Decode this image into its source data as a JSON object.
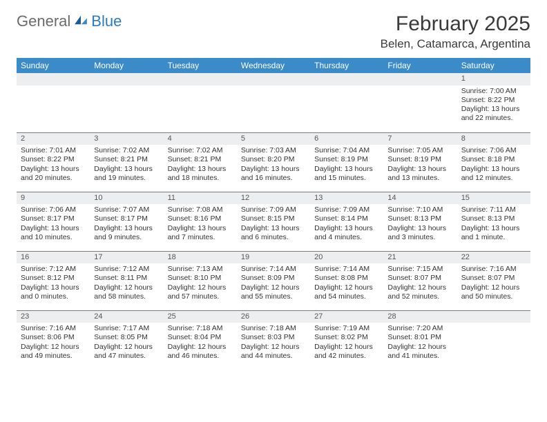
{
  "logo": {
    "general": "General",
    "blue": "Blue"
  },
  "title": "February 2025",
  "location": "Belen, Catamarca, Argentina",
  "day_headers": [
    "Sunday",
    "Monday",
    "Tuesday",
    "Wednesday",
    "Thursday",
    "Friday",
    "Saturday"
  ],
  "colors": {
    "header_bg": "#3b8bc9",
    "header_text": "#ffffff",
    "daynum_bg": "#eceef0",
    "border": "#7a7a7a",
    "text": "#333333",
    "logo_gray": "#6b6b6b",
    "logo_blue": "#2b7bbf"
  },
  "fonts": {
    "title_size": 30,
    "location_size": 17,
    "header_size": 12,
    "cell_size": 10.5
  },
  "weeks": [
    [
      null,
      null,
      null,
      null,
      null,
      null,
      {
        "n": "1",
        "sunrise": "Sunrise: 7:00 AM",
        "sunset": "Sunset: 8:22 PM",
        "daylight": "Daylight: 13 hours and 22 minutes."
      }
    ],
    [
      {
        "n": "2",
        "sunrise": "Sunrise: 7:01 AM",
        "sunset": "Sunset: 8:22 PM",
        "daylight": "Daylight: 13 hours and 20 minutes."
      },
      {
        "n": "3",
        "sunrise": "Sunrise: 7:02 AM",
        "sunset": "Sunset: 8:21 PM",
        "daylight": "Daylight: 13 hours and 19 minutes."
      },
      {
        "n": "4",
        "sunrise": "Sunrise: 7:02 AM",
        "sunset": "Sunset: 8:21 PM",
        "daylight": "Daylight: 13 hours and 18 minutes."
      },
      {
        "n": "5",
        "sunrise": "Sunrise: 7:03 AM",
        "sunset": "Sunset: 8:20 PM",
        "daylight": "Daylight: 13 hours and 16 minutes."
      },
      {
        "n": "6",
        "sunrise": "Sunrise: 7:04 AM",
        "sunset": "Sunset: 8:19 PM",
        "daylight": "Daylight: 13 hours and 15 minutes."
      },
      {
        "n": "7",
        "sunrise": "Sunrise: 7:05 AM",
        "sunset": "Sunset: 8:19 PM",
        "daylight": "Daylight: 13 hours and 13 minutes."
      },
      {
        "n": "8",
        "sunrise": "Sunrise: 7:06 AM",
        "sunset": "Sunset: 8:18 PM",
        "daylight": "Daylight: 13 hours and 12 minutes."
      }
    ],
    [
      {
        "n": "9",
        "sunrise": "Sunrise: 7:06 AM",
        "sunset": "Sunset: 8:17 PM",
        "daylight": "Daylight: 13 hours and 10 minutes."
      },
      {
        "n": "10",
        "sunrise": "Sunrise: 7:07 AM",
        "sunset": "Sunset: 8:17 PM",
        "daylight": "Daylight: 13 hours and 9 minutes."
      },
      {
        "n": "11",
        "sunrise": "Sunrise: 7:08 AM",
        "sunset": "Sunset: 8:16 PM",
        "daylight": "Daylight: 13 hours and 7 minutes."
      },
      {
        "n": "12",
        "sunrise": "Sunrise: 7:09 AM",
        "sunset": "Sunset: 8:15 PM",
        "daylight": "Daylight: 13 hours and 6 minutes."
      },
      {
        "n": "13",
        "sunrise": "Sunrise: 7:09 AM",
        "sunset": "Sunset: 8:14 PM",
        "daylight": "Daylight: 13 hours and 4 minutes."
      },
      {
        "n": "14",
        "sunrise": "Sunrise: 7:10 AM",
        "sunset": "Sunset: 8:13 PM",
        "daylight": "Daylight: 13 hours and 3 minutes."
      },
      {
        "n": "15",
        "sunrise": "Sunrise: 7:11 AM",
        "sunset": "Sunset: 8:13 PM",
        "daylight": "Daylight: 13 hours and 1 minute."
      }
    ],
    [
      {
        "n": "16",
        "sunrise": "Sunrise: 7:12 AM",
        "sunset": "Sunset: 8:12 PM",
        "daylight": "Daylight: 13 hours and 0 minutes."
      },
      {
        "n": "17",
        "sunrise": "Sunrise: 7:12 AM",
        "sunset": "Sunset: 8:11 PM",
        "daylight": "Daylight: 12 hours and 58 minutes."
      },
      {
        "n": "18",
        "sunrise": "Sunrise: 7:13 AM",
        "sunset": "Sunset: 8:10 PM",
        "daylight": "Daylight: 12 hours and 57 minutes."
      },
      {
        "n": "19",
        "sunrise": "Sunrise: 7:14 AM",
        "sunset": "Sunset: 8:09 PM",
        "daylight": "Daylight: 12 hours and 55 minutes."
      },
      {
        "n": "20",
        "sunrise": "Sunrise: 7:14 AM",
        "sunset": "Sunset: 8:08 PM",
        "daylight": "Daylight: 12 hours and 54 minutes."
      },
      {
        "n": "21",
        "sunrise": "Sunrise: 7:15 AM",
        "sunset": "Sunset: 8:07 PM",
        "daylight": "Daylight: 12 hours and 52 minutes."
      },
      {
        "n": "22",
        "sunrise": "Sunrise: 7:16 AM",
        "sunset": "Sunset: 8:07 PM",
        "daylight": "Daylight: 12 hours and 50 minutes."
      }
    ],
    [
      {
        "n": "23",
        "sunrise": "Sunrise: 7:16 AM",
        "sunset": "Sunset: 8:06 PM",
        "daylight": "Daylight: 12 hours and 49 minutes."
      },
      {
        "n": "24",
        "sunrise": "Sunrise: 7:17 AM",
        "sunset": "Sunset: 8:05 PM",
        "daylight": "Daylight: 12 hours and 47 minutes."
      },
      {
        "n": "25",
        "sunrise": "Sunrise: 7:18 AM",
        "sunset": "Sunset: 8:04 PM",
        "daylight": "Daylight: 12 hours and 46 minutes."
      },
      {
        "n": "26",
        "sunrise": "Sunrise: 7:18 AM",
        "sunset": "Sunset: 8:03 PM",
        "daylight": "Daylight: 12 hours and 44 minutes."
      },
      {
        "n": "27",
        "sunrise": "Sunrise: 7:19 AM",
        "sunset": "Sunset: 8:02 PM",
        "daylight": "Daylight: 12 hours and 42 minutes."
      },
      {
        "n": "28",
        "sunrise": "Sunrise: 7:20 AM",
        "sunset": "Sunset: 8:01 PM",
        "daylight": "Daylight: 12 hours and 41 minutes."
      },
      null
    ]
  ]
}
